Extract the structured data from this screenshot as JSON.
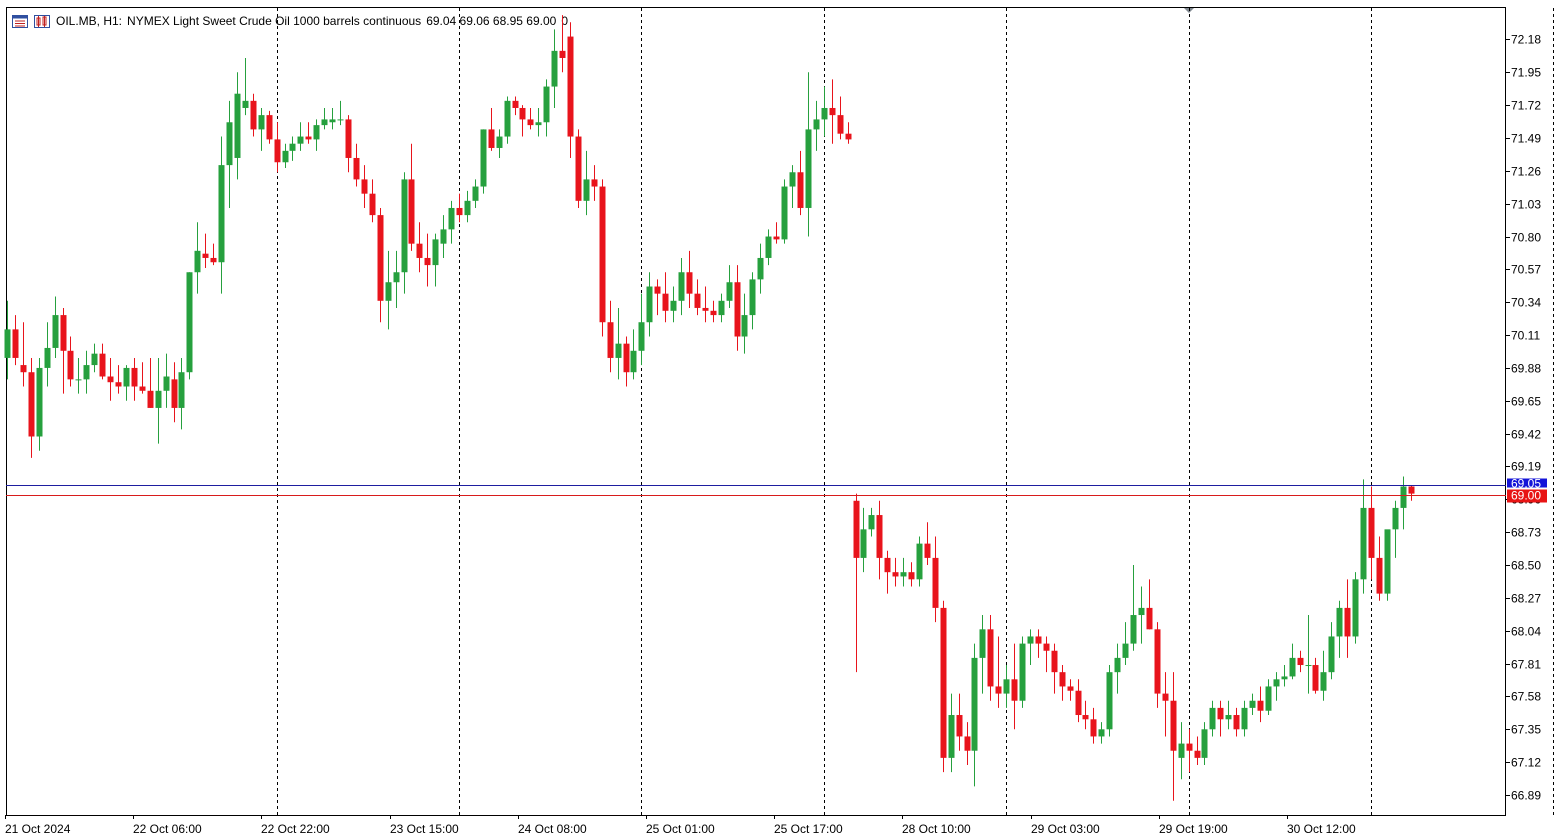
{
  "header": {
    "symbol": "OIL.MB, H1:",
    "description": "NYMEX Light Sweet Crude Oil 1000 barrels continuous",
    "ohlc": "69.04 69.06 68.95 69.00",
    "volume": "0"
  },
  "icons": {
    "menu": "quick-menu-icon",
    "chart": "chart-settings-icon"
  },
  "colors": {
    "bull": "#26a03e",
    "bear": "#e8141c",
    "ask_line": "#1e1ea0",
    "bid_line": "#d81c1c",
    "ask_label": "#1414d8",
    "bid_label": "#e81414"
  },
  "chart_data": {
    "type": "candlestick",
    "timeframe": "H1",
    "y_ticks": [
      "72.18",
      "71.95",
      "71.72",
      "71.49",
      "71.26",
      "71.03",
      "70.80",
      "70.57",
      "70.34",
      "70.11",
      "69.88",
      "69.65",
      "69.42",
      "69.19",
      "68.96",
      "68.73",
      "68.50",
      "68.27",
      "68.04",
      "67.81",
      "67.58",
      "67.35",
      "67.12",
      "66.89"
    ],
    "x_labels": [
      "21 Oct 2024",
      "22 Oct 06:00",
      "22 Oct 22:00",
      "23 Oct 15:00",
      "24 Oct 08:00",
      "25 Oct 01:00",
      "25 Oct 17:00",
      "28 Oct 10:00",
      "29 Oct 03:00",
      "29 Oct 19:00",
      "30 Oct 12:00"
    ],
    "ylim": [
      66.75,
      72.4
    ],
    "ask_price": "69.05",
    "bid_price": "69.00",
    "candles": [
      [
        69.95,
        70.35,
        69.8,
        70.15
      ],
      [
        70.15,
        70.25,
        69.9,
        69.95
      ],
      [
        69.9,
        70.2,
        69.75,
        69.85
      ],
      [
        69.85,
        69.95,
        69.25,
        69.4
      ],
      [
        69.4,
        69.95,
        69.3,
        69.88
      ],
      [
        69.88,
        70.2,
        69.75,
        70.02
      ],
      [
        70.02,
        70.38,
        69.95,
        70.25
      ],
      [
        70.25,
        70.3,
        69.7,
        70.0
      ],
      [
        70.0,
        70.1,
        69.75,
        69.8
      ],
      [
        69.8,
        69.95,
        69.7,
        69.8
      ],
      [
        69.8,
        70.0,
        69.7,
        69.9
      ],
      [
        69.9,
        70.05,
        69.85,
        69.98
      ],
      [
        69.98,
        70.05,
        69.8,
        69.82
      ],
      [
        69.82,
        69.95,
        69.65,
        69.78
      ],
      [
        69.78,
        69.9,
        69.7,
        69.75
      ],
      [
        69.75,
        69.9,
        69.65,
        69.88
      ],
      [
        69.88,
        69.95,
        69.65,
        69.75
      ],
      [
        69.75,
        69.92,
        69.7,
        69.72
      ],
      [
        69.72,
        69.95,
        69.6,
        69.6
      ],
      [
        69.6,
        69.95,
        69.35,
        69.72
      ],
      [
        69.72,
        69.98,
        69.6,
        69.82
      ],
      [
        69.8,
        69.92,
        69.5,
        69.6
      ],
      [
        69.6,
        69.95,
        69.45,
        69.85
      ],
      [
        69.85,
        70.55,
        69.8,
        70.55
      ],
      [
        70.55,
        70.9,
        70.4,
        70.7
      ],
      [
        70.68,
        70.82,
        70.58,
        70.65
      ],
      [
        70.65,
        70.75,
        70.6,
        70.62
      ],
      [
        70.62,
        71.5,
        70.4,
        71.3
      ],
      [
        71.3,
        71.75,
        71.0,
        71.6
      ],
      [
        71.35,
        71.95,
        71.2,
        71.8
      ],
      [
        71.7,
        72.05,
        71.65,
        71.75
      ],
      [
        71.75,
        71.8,
        71.5,
        71.55
      ],
      [
        71.55,
        71.7,
        71.4,
        71.65
      ],
      [
        71.65,
        71.68,
        71.45,
        71.48
      ],
      [
        71.48,
        71.6,
        71.25,
        71.32
      ],
      [
        71.32,
        71.45,
        71.28,
        71.4
      ],
      [
        71.4,
        71.5,
        71.33,
        71.45
      ],
      [
        71.45,
        71.6,
        71.4,
        71.5
      ],
      [
        71.5,
        71.6,
        71.45,
        71.48
      ],
      [
        71.48,
        71.62,
        71.4,
        71.58
      ],
      [
        71.58,
        71.7,
        71.55,
        71.62
      ],
      [
        71.6,
        71.7,
        71.55,
        71.62
      ],
      [
        71.62,
        71.75,
        71.58,
        71.62
      ],
      [
        71.62,
        71.65,
        71.25,
        71.35
      ],
      [
        71.35,
        71.45,
        71.15,
        71.2
      ],
      [
        71.2,
        71.3,
        71.0,
        71.1
      ],
      [
        71.1,
        71.2,
        70.9,
        70.95
      ],
      [
        70.95,
        71.0,
        70.2,
        70.35
      ],
      [
        70.35,
        70.7,
        70.15,
        70.48
      ],
      [
        70.48,
        70.7,
        70.3,
        70.55
      ],
      [
        70.55,
        71.25,
        70.4,
        71.2
      ],
      [
        71.2,
        71.45,
        70.7,
        70.75
      ],
      [
        70.75,
        70.9,
        70.55,
        70.65
      ],
      [
        70.65,
        70.82,
        70.45,
        70.6
      ],
      [
        70.6,
        70.82,
        70.45,
        70.78
      ],
      [
        70.75,
        70.95,
        70.65,
        70.85
      ],
      [
        70.85,
        71.05,
        70.75,
        71.0
      ],
      [
        71.0,
        71.1,
        70.9,
        70.95
      ],
      [
        70.95,
        71.12,
        70.9,
        71.05
      ],
      [
        71.05,
        71.2,
        71.0,
        71.15
      ],
      [
        71.15,
        71.55,
        71.1,
        71.55
      ],
      [
        71.55,
        71.7,
        71.4,
        71.42
      ],
      [
        71.42,
        71.55,
        71.35,
        71.5
      ],
      [
        71.5,
        71.78,
        71.45,
        71.75
      ],
      [
        71.75,
        71.78,
        71.65,
        71.7
      ],
      [
        71.7,
        71.72,
        71.5,
        71.62
      ],
      [
        71.62,
        71.7,
        71.55,
        71.58
      ],
      [
        71.58,
        71.7,
        71.5,
        71.6
      ],
      [
        71.6,
        71.9,
        71.5,
        71.85
      ],
      [
        71.85,
        72.25,
        71.7,
        72.1
      ],
      [
        72.1,
        72.35,
        71.95,
        72.05
      ],
      [
        72.2,
        72.3,
        71.35,
        71.5
      ],
      [
        71.5,
        71.55,
        71.0,
        71.05
      ],
      [
        71.05,
        71.4,
        70.95,
        71.2
      ],
      [
        71.2,
        71.3,
        71.05,
        71.15
      ],
      [
        71.15,
        71.2,
        70.1,
        70.2
      ],
      [
        70.2,
        70.35,
        69.85,
        69.95
      ],
      [
        69.95,
        70.3,
        69.8,
        70.05
      ],
      [
        70.05,
        70.1,
        69.75,
        69.85
      ],
      [
        69.85,
        70.15,
        69.8,
        70.0
      ],
      [
        70.0,
        70.4,
        69.9,
        70.2
      ],
      [
        70.2,
        70.55,
        70.1,
        70.45
      ],
      [
        70.45,
        70.5,
        70.25,
        70.4
      ],
      [
        70.4,
        70.55,
        70.2,
        70.28
      ],
      [
        70.28,
        70.45,
        70.2,
        70.35
      ],
      [
        70.35,
        70.65,
        70.25,
        70.55
      ],
      [
        70.55,
        70.7,
        70.3,
        70.4
      ],
      [
        70.4,
        70.5,
        70.25,
        70.3
      ],
      [
        70.3,
        70.45,
        70.2,
        70.28
      ],
      [
        70.28,
        70.35,
        70.2,
        70.25
      ],
      [
        70.25,
        70.4,
        70.2,
        70.35
      ],
      [
        70.35,
        70.6,
        70.3,
        70.48
      ],
      [
        70.48,
        70.6,
        70.0,
        70.1
      ],
      [
        70.1,
        70.4,
        69.98,
        70.25
      ],
      [
        70.25,
        70.55,
        70.15,
        70.5
      ],
      [
        70.5,
        70.75,
        70.4,
        70.65
      ],
      [
        70.65,
        70.85,
        70.6,
        70.8
      ],
      [
        70.8,
        70.9,
        70.75,
        70.78
      ],
      [
        70.78,
        71.2,
        70.75,
        71.15
      ],
      [
        71.15,
        71.3,
        71.0,
        71.25
      ],
      [
        71.25,
        71.4,
        70.95,
        71.0
      ],
      [
        71.0,
        71.95,
        70.8,
        71.55
      ],
      [
        71.55,
        71.75,
        71.4,
        71.62
      ],
      [
        71.62,
        71.85,
        71.5,
        71.7
      ],
      [
        71.7,
        71.9,
        71.45,
        71.65
      ],
      [
        71.65,
        71.78,
        71.48,
        71.52
      ],
      [
        71.52,
        71.6,
        71.45,
        71.48
      ],
      [
        68.95,
        69.0,
        67.75,
        68.55
      ],
      [
        68.55,
        68.9,
        68.45,
        68.75
      ],
      [
        68.75,
        68.9,
        68.7,
        68.85
      ],
      [
        68.85,
        68.95,
        68.4,
        68.55
      ],
      [
        68.55,
        68.6,
        68.3,
        68.45
      ],
      [
        68.45,
        68.55,
        68.35,
        68.42
      ],
      [
        68.42,
        68.55,
        68.35,
        68.45
      ],
      [
        68.45,
        68.52,
        68.35,
        68.4
      ],
      [
        68.4,
        68.7,
        68.35,
        68.65
      ],
      [
        68.65,
        68.8,
        68.5,
        68.55
      ],
      [
        68.55,
        68.7,
        68.1,
        68.2
      ],
      [
        68.2,
        68.25,
        67.05,
        67.15
      ],
      [
        67.15,
        67.6,
        67.05,
        67.45
      ],
      [
        67.45,
        67.6,
        67.2,
        67.3
      ],
      [
        67.3,
        67.4,
        67.1,
        67.2
      ],
      [
        67.2,
        67.95,
        66.95,
        67.85
      ],
      [
        67.85,
        68.15,
        67.6,
        68.05
      ],
      [
        68.05,
        68.15,
        67.55,
        67.65
      ],
      [
        67.65,
        68.0,
        67.5,
        67.6
      ],
      [
        67.6,
        67.8,
        67.5,
        67.7
      ],
      [
        67.7,
        67.95,
        67.35,
        67.55
      ],
      [
        67.55,
        68.0,
        67.5,
        67.95
      ],
      [
        67.95,
        68.05,
        67.8,
        68.0
      ],
      [
        68.0,
        68.05,
        67.85,
        67.95
      ],
      [
        67.95,
        68.0,
        67.75,
        67.9
      ],
      [
        67.9,
        67.95,
        67.6,
        67.75
      ],
      [
        67.75,
        67.8,
        67.55,
        67.65
      ],
      [
        67.65,
        67.7,
        67.55,
        67.62
      ],
      [
        67.62,
        67.7,
        67.4,
        67.45
      ],
      [
        67.45,
        67.55,
        67.35,
        67.42
      ],
      [
        67.42,
        67.5,
        67.25,
        67.3
      ],
      [
        67.3,
        67.4,
        67.25,
        67.35
      ],
      [
        67.35,
        67.8,
        67.3,
        67.75
      ],
      [
        67.75,
        67.95,
        67.6,
        67.85
      ],
      [
        67.85,
        68.1,
        67.8,
        67.95
      ],
      [
        67.95,
        68.5,
        67.9,
        68.15
      ],
      [
        68.15,
        68.35,
        67.95,
        68.2
      ],
      [
        68.2,
        68.4,
        68.05,
        68.05
      ],
      [
        68.05,
        68.1,
        67.5,
        67.6
      ],
      [
        67.6,
        67.75,
        67.3,
        67.55
      ],
      [
        67.55,
        67.75,
        66.85,
        67.2
      ],
      [
        67.15,
        67.4,
        67.0,
        67.25
      ],
      [
        67.25,
        67.35,
        67.05,
        67.2
      ],
      [
        67.2,
        67.3,
        67.1,
        67.15
      ],
      [
        67.15,
        67.4,
        67.1,
        67.35
      ],
      [
        67.35,
        67.55,
        67.3,
        67.5
      ],
      [
        67.5,
        67.55,
        67.3,
        67.42
      ],
      [
        67.42,
        67.55,
        67.35,
        67.45
      ],
      [
        67.45,
        67.5,
        67.3,
        67.35
      ],
      [
        67.35,
        67.55,
        67.3,
        67.5
      ],
      [
        67.5,
        67.6,
        67.45,
        67.55
      ],
      [
        67.55,
        67.65,
        67.4,
        67.48
      ],
      [
        67.48,
        67.7,
        67.45,
        67.65
      ],
      [
        67.65,
        67.75,
        67.55,
        67.7
      ],
      [
        67.7,
        67.8,
        67.65,
        67.72
      ],
      [
        67.72,
        67.95,
        67.7,
        67.85
      ],
      [
        67.85,
        67.9,
        67.75,
        67.8
      ],
      [
        67.8,
        68.15,
        67.6,
        67.8
      ],
      [
        67.8,
        67.85,
        67.6,
        67.62
      ],
      [
        67.62,
        67.9,
        67.55,
        67.75
      ],
      [
        67.75,
        68.1,
        67.7,
        68.0
      ],
      [
        68.0,
        68.25,
        67.85,
        68.2
      ],
      [
        68.2,
        68.4,
        67.85,
        68.0
      ],
      [
        68.0,
        68.45,
        67.95,
        68.4
      ],
      [
        68.4,
        69.1,
        68.3,
        68.9
      ],
      [
        68.9,
        69.05,
        68.4,
        68.55
      ],
      [
        68.55,
        68.7,
        68.25,
        68.3
      ],
      [
        68.3,
        68.7,
        68.25,
        68.75
      ],
      [
        68.75,
        68.95,
        68.55,
        68.9
      ],
      [
        68.9,
        69.12,
        68.75,
        69.05
      ],
      [
        69.05,
        69.06,
        68.95,
        69.0
      ]
    ]
  }
}
